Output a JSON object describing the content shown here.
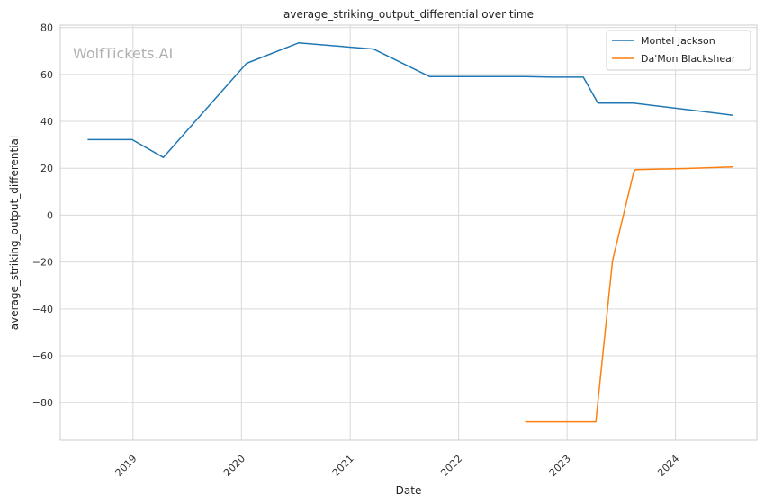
{
  "chart_data": {
    "type": "line",
    "title": "average_striking_output_differential over time",
    "xlabel": "Date",
    "ylabel": "average_striking_output_differential",
    "watermark": "WolfTickets.AI",
    "xlim": [
      "2018-05-01",
      "2024-10-01"
    ],
    "ylim": [
      -96,
      81
    ],
    "yticks": [
      80,
      60,
      40,
      20,
      0,
      -20,
      -40,
      -60,
      -80
    ],
    "xticks": [
      "2019",
      "2020",
      "2021",
      "2022",
      "2023",
      "2024"
    ],
    "grid": true,
    "legend_position": "top-right",
    "series": [
      {
        "name": "Montel Jackson",
        "color": "#1f77b4",
        "points": [
          {
            "x": "2018-08-01",
            "y": 32.2
          },
          {
            "x": "2018-12-29",
            "y": 32.2
          },
          {
            "x": "2019-04-13",
            "y": 24.6
          },
          {
            "x": "2020-01-18",
            "y": 64.7
          },
          {
            "x": "2020-07-11",
            "y": 73.4
          },
          {
            "x": "2021-03-20",
            "y": 70.8
          },
          {
            "x": "2021-09-25",
            "y": 59.1
          },
          {
            "x": "2022-08-13",
            "y": 59.1
          },
          {
            "x": "2022-11-12",
            "y": 58.8
          },
          {
            "x": "2023-02-25",
            "y": 58.8
          },
          {
            "x": "2023-04-15",
            "y": 47.8
          },
          {
            "x": "2023-08-12",
            "y": 47.8
          },
          {
            "x": "2024-07-13",
            "y": 42.6
          }
        ]
      },
      {
        "name": "Da'Mon Blackshear",
        "color": "#ff7f0e",
        "points": [
          {
            "x": "2022-08-13",
            "y": -88.2
          },
          {
            "x": "2023-04-08",
            "y": -88.2
          },
          {
            "x": "2023-06-03",
            "y": -19.5
          },
          {
            "x": "2023-08-12",
            "y": 17.6
          },
          {
            "x": "2023-08-19",
            "y": 19.4
          },
          {
            "x": "2024-02-03",
            "y": 19.9
          },
          {
            "x": "2024-07-13",
            "y": 20.6
          }
        ]
      }
    ]
  }
}
